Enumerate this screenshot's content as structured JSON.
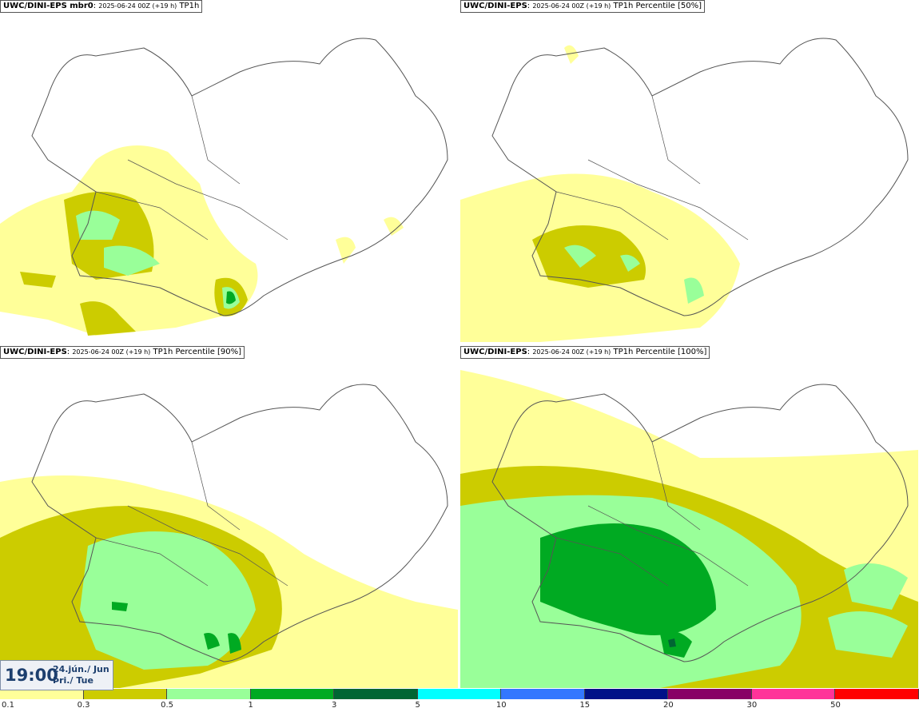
{
  "panels": [
    {
      "model": "UWC/DINI-EPS mbr0",
      "run": "2025-06-24 00Z (+19 h)",
      "product": "TP1h"
    },
    {
      "model": "UWC/DINI-EPS",
      "run": "2025-06-24 00Z (+19 h)",
      "product": "TP1h Percentile [50%]"
    },
    {
      "model": "UWC/DINI-EPS",
      "run": "2025-06-24 00Z (+19 h)",
      "product": "TP1h Percentile [90%]"
    },
    {
      "model": "UWC/DINI-EPS",
      "run": "2025-06-24 00Z (+19 h)",
      "product": "TP1h Percentile [100%]"
    }
  ],
  "valid_time": {
    "clock": "19:00",
    "date": "24.jún./ Jun",
    "weekday": "Þri./ Tue"
  },
  "legend": {
    "colors": [
      "#ffff99",
      "#cccc00",
      "#99ff99",
      "#00aa22",
      "#006633",
      "#00ffff",
      "#3377ff",
      "#001188",
      "#880066",
      "#ff3399",
      "#ff0000"
    ],
    "ticks": [
      "0.1",
      "0.3",
      "0.5",
      "1",
      "3",
      "5",
      "10",
      "15",
      "20",
      "30",
      "50"
    ]
  }
}
